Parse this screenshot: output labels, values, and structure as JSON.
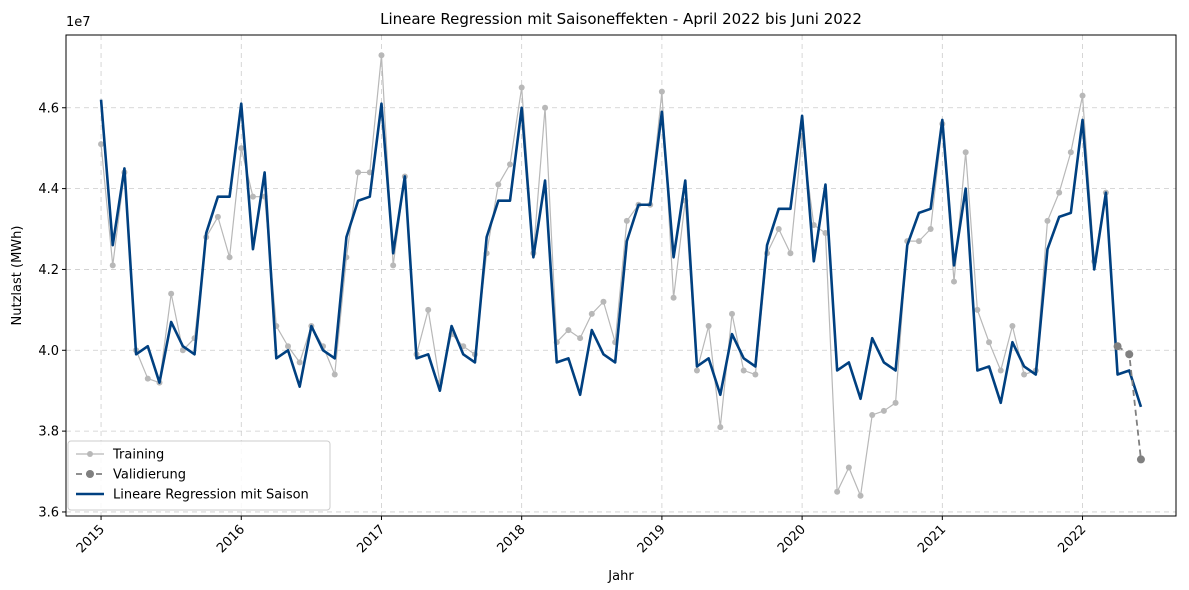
{
  "chart_data": {
    "type": "line",
    "title": "Lineare Regression mit Saisoneffekten - April 2022 bis Juni 2022",
    "xlabel": "Jahr",
    "ylabel": "Nutzlast (MWh)",
    "y_offset_label": "1e7",
    "grid": true,
    "legend_position": "lower-left",
    "x_tick_labels": [
      "2015",
      "2016",
      "2017",
      "2018",
      "2019",
      "2020",
      "2021",
      "2022"
    ],
    "y_tick_labels": [
      "3.6",
      "3.8",
      "4.0",
      "4.2",
      "4.4",
      "4.6"
    ],
    "y_ticks": [
      3.6,
      3.8,
      4.0,
      4.2,
      4.4,
      4.6
    ],
    "xlim": [
      "2014-10",
      "2022-09"
    ],
    "ylim": [
      3.59,
      4.78
    ],
    "y_unit_multiplier": 10000000,
    "series": [
      {
        "name": "Training",
        "color": "#b8b8b8",
        "start": "2015-01",
        "values": [
          4.51,
          4.21,
          4.44,
          4.0,
          3.93,
          3.92,
          4.14,
          4.0,
          4.03,
          4.28,
          4.33,
          4.23,
          4.5,
          4.38,
          4.38,
          4.06,
          4.01,
          3.97,
          4.06,
          4.01,
          3.94,
          4.23,
          4.44,
          4.44,
          4.73,
          4.21,
          4.43,
          3.99,
          4.1,
          3.92,
          4.04,
          4.01,
          3.99,
          4.24,
          4.41,
          4.46,
          4.65,
          4.24,
          4.6,
          4.02,
          4.05,
          4.03,
          4.09,
          4.12,
          4.02,
          4.32,
          4.36,
          4.36,
          4.64,
          4.13,
          4.37,
          3.95,
          4.06,
          3.81,
          4.09,
          3.95,
          3.94,
          4.24,
          4.3,
          4.24,
          4.53,
          4.31,
          4.29,
          3.65,
          3.71,
          3.64,
          3.84,
          3.85,
          3.87,
          4.27,
          4.27,
          4.3,
          4.56,
          4.17,
          4.49,
          4.1,
          4.02,
          3.95,
          4.06,
          3.94,
          3.95,
          4.32,
          4.39,
          4.49,
          4.63,
          4.22,
          4.39
        ]
      },
      {
        "name": "Validierung",
        "color": "#808080",
        "start": "2022-04",
        "values": [
          4.01,
          3.99,
          3.73
        ]
      },
      {
        "name": "Lineare Regression mit Saison",
        "color": "#004080",
        "start": "2015-01",
        "values": [
          4.62,
          4.26,
          4.45,
          3.99,
          4.01,
          3.92,
          4.07,
          4.01,
          3.99,
          4.29,
          4.38,
          4.38,
          4.61,
          4.25,
          4.44,
          3.98,
          4.0,
          3.91,
          4.06,
          4.0,
          3.98,
          4.28,
          4.37,
          4.38,
          4.61,
          4.24,
          4.43,
          3.98,
          3.99,
          3.9,
          4.06,
          3.99,
          3.97,
          4.28,
          4.37,
          4.37,
          4.6,
          4.23,
          4.42,
          3.97,
          3.98,
          3.89,
          4.05,
          3.99,
          3.97,
          4.27,
          4.36,
          4.36,
          4.59,
          4.23,
          4.42,
          3.96,
          3.98,
          3.89,
          4.04,
          3.98,
          3.96,
          4.26,
          4.35,
          4.35,
          4.58,
          4.22,
          4.41,
          3.95,
          3.97,
          3.88,
          4.03,
          3.97,
          3.95,
          4.26,
          4.34,
          4.35,
          4.57,
          4.21,
          4.4,
          3.95,
          3.96,
          3.87,
          4.02,
          3.96,
          3.94,
          4.25,
          4.33,
          4.34,
          4.57,
          4.2,
          4.39,
          3.94,
          3.95,
          3.86
        ]
      }
    ]
  }
}
